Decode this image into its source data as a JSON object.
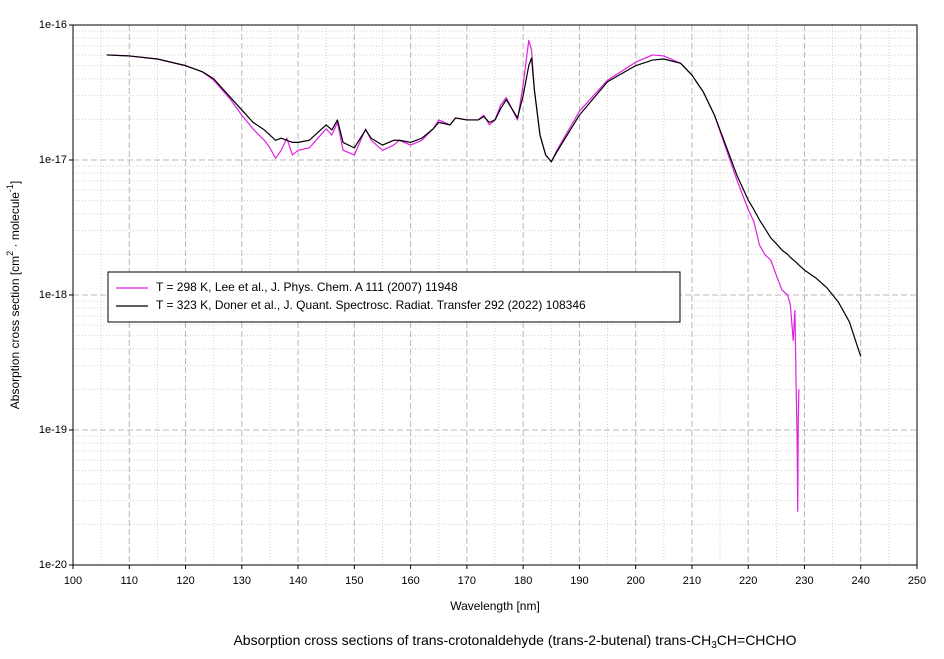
{
  "chart_data": {
    "type": "line",
    "title": [
      "Absorption cross sections of trans-crotonaldehyde (trans-2-butenal) trans-CH",
      "3",
      "CH=CHCHO"
    ],
    "x_label": "Wavelength [nm]",
    "y_label": [
      "Absorption cross section [cm",
      "2",
      " · molecule",
      "-1",
      "]"
    ],
    "y_scale": "log",
    "grid": true,
    "legend_position": "center left",
    "xlim": [
      100,
      250
    ],
    "xticks": [
      100,
      110,
      120,
      130,
      140,
      150,
      160,
      170,
      180,
      190,
      200,
      210,
      220,
      230,
      240,
      250
    ],
    "ylim": [
      1e-20,
      1e-16
    ],
    "yticks": [
      1e-20,
      1e-19,
      1e-18,
      1e-17,
      1e-16
    ],
    "x": [
      106,
      110,
      115,
      120,
      123,
      125,
      128,
      130,
      132,
      134,
      135,
      136,
      137,
      138,
      139,
      140,
      142,
      144,
      145,
      146,
      147,
      148,
      150,
      152,
      153,
      155,
      157,
      158,
      160,
      162,
      164,
      165,
      167,
      168,
      170,
      172,
      173,
      174,
      175,
      176,
      177,
      178,
      179,
      180,
      181,
      181.5,
      182,
      183,
      184,
      185,
      186,
      190,
      195,
      200,
      203,
      205,
      208,
      210,
      212,
      214,
      216,
      218,
      220,
      221,
      222,
      223,
      224,
      225,
      226,
      227,
      227.5,
      228,
      228.3,
      228.5,
      228.7,
      228.8,
      228.9,
      229,
      230,
      232,
      234,
      236,
      238,
      240
    ],
    "series": [
      {
        "name": "T = 298 K, Lee et al., J. Phys. Chem. A 111 (2007) 11948",
        "color": "#e020e0",
        "values": [
          6e-17,
          5.9e-17,
          5.6e-17,
          5e-17,
          4.5e-17,
          3.9e-17,
          2.8e-17,
          2.15e-17,
          1.7e-17,
          1.4e-17,
          1.23e-17,
          1.03e-17,
          1.18e-17,
          1.45e-17,
          1.09e-17,
          1.18e-17,
          1.23e-17,
          1.53e-17,
          1.7e-17,
          1.53e-17,
          1.9e-17,
          1.18e-17,
          1.09e-17,
          1.7e-17,
          1.4e-17,
          1.18e-17,
          1.29e-17,
          1.4e-17,
          1.29e-17,
          1.4e-17,
          1.7e-17,
          1.98e-17,
          1.82e-17,
          2.05e-17,
          1.98e-17,
          1.98e-17,
          2.15e-17,
          1.82e-17,
          1.98e-17,
          2.55e-17,
          2.9e-17,
          2.4e-17,
          1.98e-17,
          3.6e-17,
          7.7e-17,
          6.5e-17,
          3.3e-17,
          1.53e-17,
          1.09e-17,
          9.7e-18,
          1.18e-17,
          2.3e-17,
          3.9e-17,
          5.3e-17,
          6e-17,
          5.9e-17,
          5.2e-17,
          4.26e-17,
          3.2e-17,
          2.15e-17,
          1.23e-17,
          7.1e-18,
          4.3e-18,
          3.5e-18,
          2.35e-18,
          1.98e-18,
          1.82e-18,
          1.4e-18,
          1.09e-18,
          1e-18,
          8.4e-19,
          4.6e-19,
          7.7e-19,
          2.35e-19,
          8.4e-20,
          2.5e-20,
          1.18e-19,
          2e-19,
          null,
          null,
          null,
          null,
          null,
          null
        ]
      },
      {
        "name": "T = 323 K, Doner et al., J. Quant. Spectrosc. Radiat. Transfer 292 (2022) 108346",
        "color": "#000000",
        "values": [
          6e-17,
          5.9e-17,
          5.6e-17,
          5e-17,
          4.5e-17,
          4e-17,
          2.9e-17,
          2.35e-17,
          1.9e-17,
          1.67e-17,
          1.53e-17,
          1.4e-17,
          1.45e-17,
          1.4e-17,
          1.35e-17,
          1.35e-17,
          1.4e-17,
          1.67e-17,
          1.82e-17,
          1.67e-17,
          1.98e-17,
          1.35e-17,
          1.23e-17,
          1.67e-17,
          1.45e-17,
          1.29e-17,
          1.4e-17,
          1.4e-17,
          1.35e-17,
          1.45e-17,
          1.7e-17,
          1.9e-17,
          1.82e-17,
          2.05e-17,
          1.98e-17,
          1.98e-17,
          2.1e-17,
          1.9e-17,
          1.98e-17,
          2.4e-17,
          2.8e-17,
          2.4e-17,
          2.05e-17,
          3e-17,
          5e-17,
          5.7e-17,
          3.3e-17,
          1.53e-17,
          1.09e-17,
          9.7e-18,
          1.15e-17,
          2.15e-17,
          3.8e-17,
          5e-17,
          5.5e-17,
          5.6e-17,
          5.2e-17,
          4.26e-17,
          3.2e-17,
          2.15e-17,
          1.29e-17,
          7.7e-18,
          5.05e-18,
          4.3e-18,
          3.6e-18,
          3.1e-18,
          2.65e-18,
          2.4e-18,
          2.15e-18,
          2e-18,
          1.9e-18,
          1.82e-18,
          1.78e-18,
          1.75e-18,
          1.72e-18,
          1.7e-18,
          1.68e-18,
          1.67e-18,
          1.53e-18,
          1.34e-18,
          1.13e-18,
          8.9e-19,
          6.3e-19,
          3.5e-19
        ]
      }
    ]
  }
}
